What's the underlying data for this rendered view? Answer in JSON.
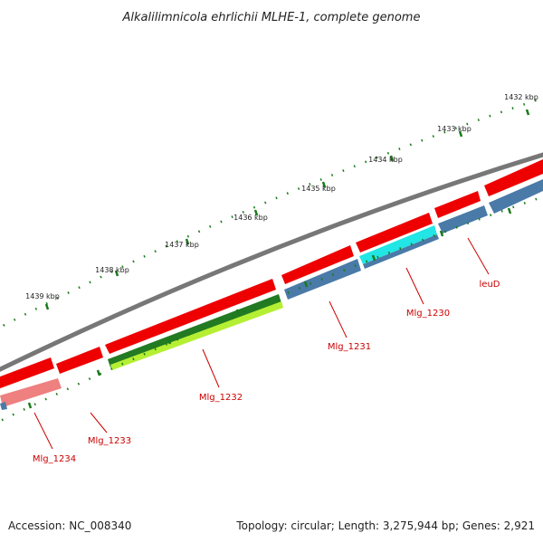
{
  "title": "Alkalilimnicola ehrlichii MLHE-1, complete genome",
  "footer": {
    "accession": "Accession: NC_008340",
    "summary": "Topology: circular; Length: 3,275,944 bp; Genes: 2,921"
  },
  "ticks": [
    {
      "label": "1432 kbp"
    },
    {
      "label": "1433 kbp"
    },
    {
      "label": "1434 kbp"
    },
    {
      "label": "1435 kbp"
    },
    {
      "label": "1436 kbp"
    },
    {
      "label": "1437 kbp"
    },
    {
      "label": "1438 kbp"
    },
    {
      "label": "1439 kbp"
    }
  ],
  "genes": [
    {
      "label": "leuD"
    },
    {
      "label": "Mlg_1230"
    },
    {
      "label": "Mlg_1231"
    },
    {
      "label": "Mlg_1232"
    },
    {
      "label": "Mlg_1233"
    },
    {
      "label": "Mlg_1234"
    }
  ],
  "colors": {
    "backbone": "#777777",
    "cds": "#ee0000",
    "gene_blue": "#4a7aa8",
    "cyan": "#22e5e5",
    "rna_dark_green": "#227a22",
    "rna_light_green": "#b5ef33",
    "pink": "#ee8080",
    "tick_green": "#1a7a1a",
    "label_red": "#cc0000"
  }
}
